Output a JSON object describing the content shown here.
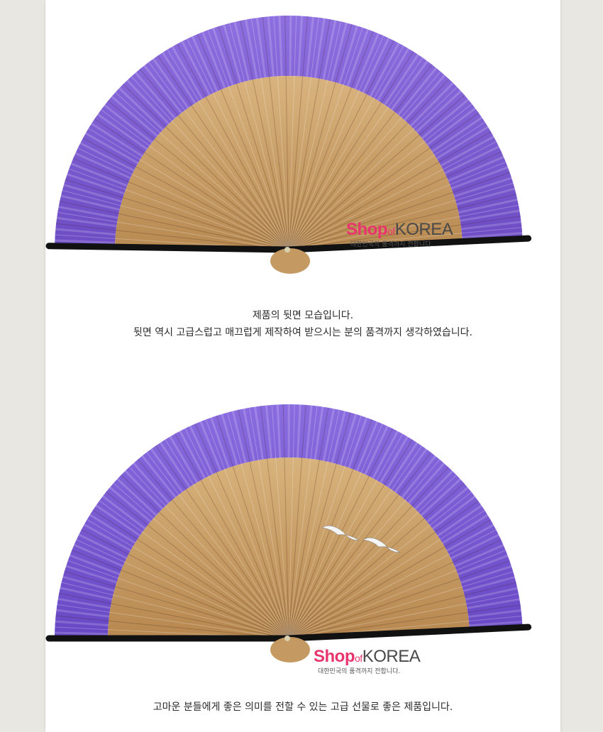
{
  "captions": {
    "back_line1": "제품의 뒷면 모습입니다.",
    "back_line2": "뒷면 역시 고급스럽고 매끄럽게 제작하여 받으시는 분의 품격까지 생각하였습니다.",
    "closing": "고마운 분들에게 좋은 의미를 전할 수 있는 고급 선물로 좋은 제품입니다."
  },
  "watermark": {
    "shop": "Shop",
    "of": "of",
    "korea": "KOREA",
    "tagline": "대한민국의 품격까지 전합니다."
  },
  "colors": {
    "fan_silk": "#7f5fd6",
    "bamboo": "#c9a06a",
    "frame": "#111111",
    "brand_pink": "#e8356d"
  }
}
